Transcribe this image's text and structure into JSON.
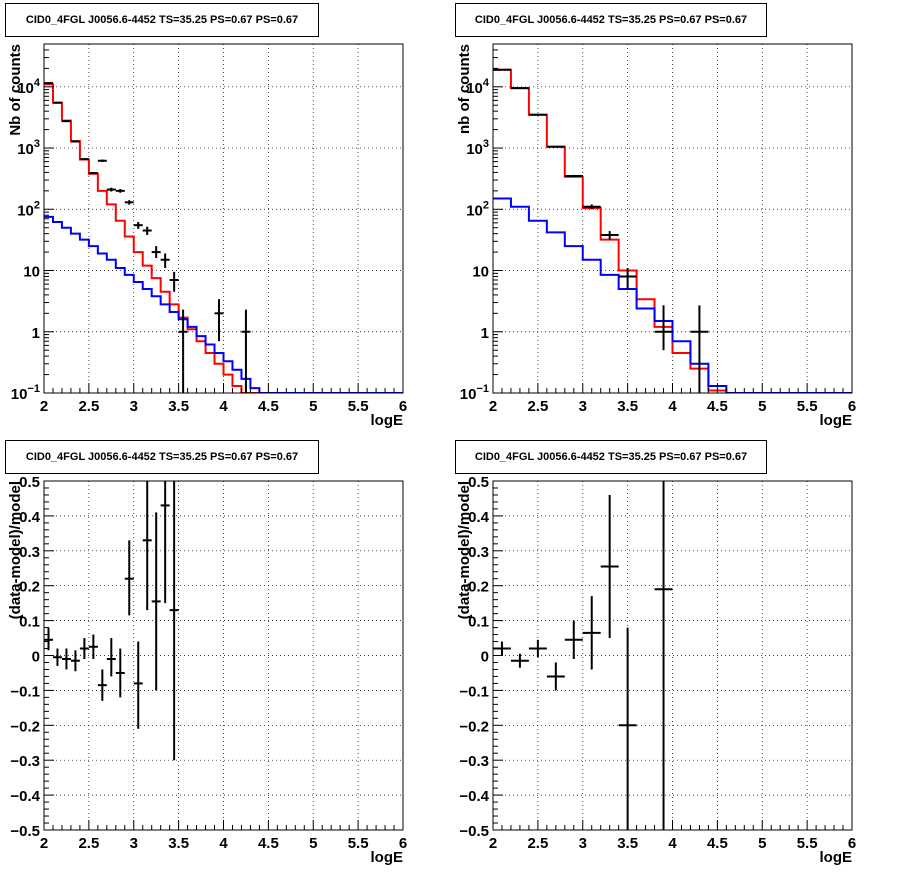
{
  "chart_data": [
    {
      "id": "p1",
      "type": "line",
      "title": "CID0_4FGL J0056.6-4452 TS=35.25 PS=0.67 PS=0.67",
      "xlabel": "logE",
      "ylabel": "Nb of counts",
      "xlim": [
        2,
        6
      ],
      "ylim": [
        0.1,
        50000
      ],
      "ylog": true,
      "grid": true,
      "xticks": [
        "2",
        "2.5",
        "3",
        "3.5",
        "4",
        "4.5",
        "5",
        "5.5",
        "6"
      ],
      "yticks": [
        "10^-1",
        "1",
        "10",
        "10^2",
        "10^3",
        "10^4"
      ],
      "series": [
        {
          "color": "#ff0000",
          "style": "step",
          "edges": [
            2.0,
            2.1,
            2.2,
            2.3,
            2.4,
            2.5,
            2.6,
            2.7,
            2.8,
            2.9,
            3.0,
            3.1,
            3.2,
            3.3,
            3.4,
            3.5,
            3.6,
            3.7,
            3.8,
            3.9,
            4.0,
            4.1,
            4.2,
            4.3,
            4.4,
            4.5,
            4.6,
            4.7,
            4.8,
            4.9,
            5.0,
            5.1,
            5.2,
            5.3,
            5.4,
            5.5,
            5.6,
            5.7,
            5.8,
            5.9,
            6.0
          ],
          "values": [
            11000,
            5500,
            2800,
            1300,
            650,
            380,
            200,
            120,
            65,
            36,
            20,
            12,
            7.5,
            4.5,
            2.8,
            1.7,
            1.1,
            0.7,
            0.45,
            0.3,
            0.2,
            0.13,
            0.1,
            0.1,
            0.1,
            0.1,
            0.1,
            0.1,
            0.1,
            0.1,
            0.1,
            0.1,
            0.1,
            0.1,
            0.1,
            0.1,
            0.1,
            0.1,
            0.1,
            0.1
          ]
        },
        {
          "color": "#0000ff",
          "style": "step",
          "edges": [
            2.0,
            2.1,
            2.2,
            2.3,
            2.4,
            2.5,
            2.6,
            2.7,
            2.8,
            2.9,
            3.0,
            3.1,
            3.2,
            3.3,
            3.4,
            3.5,
            3.6,
            3.7,
            3.8,
            3.9,
            4.0,
            4.1,
            4.2,
            4.3,
            4.4,
            4.5,
            4.6,
            4.7,
            4.8,
            4.9,
            5.0,
            5.1,
            5.2,
            5.3,
            5.4,
            5.5,
            5.6,
            5.7,
            5.8,
            5.9,
            6.0
          ],
          "values": [
            75,
            62,
            50,
            40,
            32,
            25,
            19,
            15,
            11,
            8.5,
            6.5,
            5,
            3.8,
            2.8,
            2.1,
            1.6,
            1.2,
            0.85,
            0.62,
            0.45,
            0.33,
            0.24,
            0.17,
            0.12,
            0.1,
            0.1,
            0.1,
            0.1,
            0.1,
            0.1,
            0.1,
            0.1,
            0.1,
            0.1,
            0.1,
            0.1,
            0.1,
            0.1,
            0.1,
            0.1
          ]
        },
        {
          "color": "#000000",
          "style": "errorbar",
          "points": [
            {
              "x": 2.05,
              "y": 11500,
              "xerr": 0.05,
              "ylo": 11300,
              "yhi": 11700
            },
            {
              "x": 2.15,
              "y": 5500,
              "xerr": 0.05,
              "ylo": 5400,
              "yhi": 5600
            },
            {
              "x": 2.25,
              "y": 2750,
              "xerr": 0.05,
              "ylo": 2700,
              "yhi": 2800
            },
            {
              "x": 2.35,
              "y": 1280,
              "xerr": 0.05,
              "ylo": 1250,
              "yhi": 1310
            },
            {
              "x": 2.45,
              "y": 660,
              "xerr": 0.05,
              "ylo": 640,
              "yhi": 680
            },
            {
              "x": 2.55,
              "y": 390,
              "xerr": 0.05,
              "ylo": 375,
              "yhi": 405
            },
            {
              "x": 2.65,
              "y": 620,
              "xerr": 0.05,
              "ylo": 590,
              "yhi": 650
            },
            {
              "x": 2.75,
              "y": 210,
              "xerr": 0.05,
              "ylo": 195,
              "yhi": 225
            },
            {
              "x": 2.85,
              "y": 200,
              "xerr": 0.05,
              "ylo": 186,
              "yhi": 214
            },
            {
              "x": 2.95,
              "y": 130,
              "xerr": 0.05,
              "ylo": 119,
              "yhi": 141
            },
            {
              "x": 3.05,
              "y": 55,
              "xerr": 0.05,
              "ylo": 48,
              "yhi": 62
            },
            {
              "x": 3.15,
              "y": 45,
              "xerr": 0.05,
              "ylo": 38,
              "yhi": 52
            },
            {
              "x": 3.25,
              "y": 20,
              "xerr": 0.05,
              "ylo": 16,
              "yhi": 25
            },
            {
              "x": 3.35,
              "y": 15,
              "xerr": 0.05,
              "ylo": 11,
              "yhi": 19
            },
            {
              "x": 3.45,
              "y": 7,
              "xerr": 0.05,
              "ylo": 4.5,
              "yhi": 9.5
            },
            {
              "x": 3.55,
              "y": 1,
              "xerr": 0.05,
              "ylo": 0.1,
              "yhi": 2.3
            },
            {
              "x": 3.95,
              "y": 2,
              "xerr": 0.05,
              "ylo": 0.7,
              "yhi": 3.4
            },
            {
              "x": 4.25,
              "y": 1,
              "xerr": 0.05,
              "ylo": 0.1,
              "yhi": 2.3
            }
          ]
        }
      ]
    },
    {
      "id": "p2",
      "type": "line",
      "title": "CID0_4FGL J0056.6-4452 TS=35.25 PS=0.67 PS=0.67",
      "xlabel": "logE",
      "ylabel": "nb of counts",
      "xlim": [
        2,
        6
      ],
      "ylim": [
        0.1,
        50000
      ],
      "ylog": true,
      "grid": true,
      "xticks": [
        "2",
        "2.5",
        "3",
        "3.5",
        "4",
        "4.5",
        "5",
        "5.5",
        "6"
      ],
      "yticks": [
        "10^-1",
        "1",
        "10",
        "10^2",
        "10^3",
        "10^4"
      ],
      "series": [
        {
          "color": "#ff0000",
          "style": "step",
          "edges": [
            2.0,
            2.2,
            2.4,
            2.6,
            2.8,
            3.0,
            3.2,
            3.4,
            3.6,
            3.8,
            4.0,
            4.2,
            4.4,
            4.6,
            4.8,
            5.0,
            5.2,
            5.4,
            5.6,
            5.8,
            6.0
          ],
          "values": [
            19000,
            9500,
            3500,
            1050,
            340,
            105,
            32,
            10,
            3.4,
            1.2,
            0.45,
            0.25,
            0.11,
            0.1,
            0.1,
            0.1,
            0.1,
            0.1,
            0.1,
            0.1
          ]
        },
        {
          "color": "#0000ff",
          "style": "step",
          "edges": [
            2.0,
            2.2,
            2.4,
            2.6,
            2.8,
            3.0,
            3.2,
            3.4,
            3.6,
            3.8,
            4.0,
            4.2,
            4.4,
            4.6,
            4.8,
            5.0,
            5.2,
            5.4,
            5.6,
            5.8,
            6.0
          ],
          "values": [
            150,
            110,
            65,
            42,
            25,
            15,
            8.5,
            5,
            2.4,
            1.5,
            0.7,
            0.3,
            0.13,
            0.1,
            0.1,
            0.1,
            0.1,
            0.1,
            0.1,
            0.1
          ]
        },
        {
          "color": "#000000",
          "style": "errorbar",
          "points": [
            {
              "x": 2.1,
              "y": 19000,
              "xerr": 0.1,
              "ylo": 18800,
              "yhi": 19200
            },
            {
              "x": 2.3,
              "y": 9500,
              "xerr": 0.1,
              "ylo": 9400,
              "yhi": 9600
            },
            {
              "x": 2.5,
              "y": 3500,
              "xerr": 0.1,
              "ylo": 3450,
              "yhi": 3550
            },
            {
              "x": 2.7,
              "y": 1050,
              "xerr": 0.1,
              "ylo": 1020,
              "yhi": 1080
            },
            {
              "x": 2.9,
              "y": 350,
              "xerr": 0.1,
              "ylo": 335,
              "yhi": 365
            },
            {
              "x": 3.1,
              "y": 110,
              "xerr": 0.1,
              "ylo": 100,
              "yhi": 120
            },
            {
              "x": 3.3,
              "y": 38,
              "xerr": 0.1,
              "ylo": 32,
              "yhi": 44
            },
            {
              "x": 3.5,
              "y": 8,
              "xerr": 0.1,
              "ylo": 5,
              "yhi": 11
            },
            {
              "x": 3.9,
              "y": 1,
              "xerr": 0.1,
              "ylo": 0.5,
              "yhi": 2.7
            },
            {
              "x": 4.3,
              "y": 1,
              "xerr": 0.1,
              "ylo": 0.1,
              "yhi": 2.7
            }
          ]
        }
      ]
    },
    {
      "id": "p3",
      "type": "scatter",
      "title": "CID0_4FGL J0056.6-4452 TS=35.25 PS=0.67 PS=0.67",
      "xlabel": "logE",
      "ylabel": "(data-model)/model",
      "xlim": [
        2,
        6
      ],
      "ylim": [
        -0.5,
        0.5
      ],
      "ylog": false,
      "grid": true,
      "xticks": [
        "2",
        "2.5",
        "3",
        "3.5",
        "4",
        "4.5",
        "5",
        "5.5",
        "6"
      ],
      "yticks": [
        "-0.5",
        "-0.4",
        "-0.3",
        "-0.2",
        "-0.1",
        "0",
        "0.1",
        "0.2",
        "0.3",
        "0.4",
        "0.5"
      ],
      "series": [
        {
          "color": "#000000",
          "style": "errorbar",
          "points": [
            {
              "x": 2.05,
              "y": 0.045,
              "xerr": 0.05,
              "ylo": 0.015,
              "yhi": 0.08
            },
            {
              "x": 2.15,
              "y": -0.005,
              "xerr": 0.05,
              "ylo": -0.03,
              "yhi": 0.02
            },
            {
              "x": 2.25,
              "y": -0.01,
              "xerr": 0.05,
              "ylo": -0.04,
              "yhi": 0.02
            },
            {
              "x": 2.35,
              "y": -0.015,
              "xerr": 0.05,
              "ylo": -0.045,
              "yhi": 0.015
            },
            {
              "x": 2.45,
              "y": 0.02,
              "xerr": 0.05,
              "ylo": -0.01,
              "yhi": 0.05
            },
            {
              "x": 2.55,
              "y": 0.025,
              "xerr": 0.05,
              "ylo": -0.01,
              "yhi": 0.06
            },
            {
              "x": 2.65,
              "y": -0.085,
              "xerr": 0.05,
              "ylo": -0.13,
              "yhi": -0.04
            },
            {
              "x": 2.75,
              "y": -0.01,
              "xerr": 0.05,
              "ylo": -0.06,
              "yhi": 0.05
            },
            {
              "x": 2.85,
              "y": -0.05,
              "xerr": 0.05,
              "ylo": -0.12,
              "yhi": 0.02
            },
            {
              "x": 2.95,
              "y": 0.22,
              "xerr": 0.05,
              "ylo": 0.115,
              "yhi": 0.33
            },
            {
              "x": 3.05,
              "y": -0.08,
              "xerr": 0.05,
              "ylo": -0.21,
              "yhi": 0.04
            },
            {
              "x": 3.15,
              "y": 0.33,
              "xerr": 0.05,
              "ylo": 0.13,
              "yhi": 0.52
            },
            {
              "x": 3.25,
              "y": 0.155,
              "xerr": 0.05,
              "ylo": -0.1,
              "yhi": 0.41
            },
            {
              "x": 3.35,
              "y": 0.43,
              "xerr": 0.05,
              "ylo": 0.15,
              "yhi": 0.72
            },
            {
              "x": 3.45,
              "y": 0.13,
              "xerr": 0.05,
              "ylo": -0.3,
              "yhi": 0.56
            }
          ]
        }
      ]
    },
    {
      "id": "p4",
      "type": "scatter",
      "title": "CID0_4FGL J0056.6-4452 TS=35.25 PS=0.67 PS=0.67",
      "xlabel": "logE",
      "ylabel": "(data-model)/model",
      "xlim": [
        2,
        6
      ],
      "ylim": [
        -0.5,
        0.5
      ],
      "ylog": false,
      "grid": true,
      "xticks": [
        "2",
        "2.5",
        "3",
        "3.5",
        "4",
        "4.5",
        "5",
        "5.5",
        "6"
      ],
      "yticks": [
        "-0.5",
        "-0.4",
        "-0.3",
        "-0.2",
        "-0.1",
        "0",
        "0.1",
        "0.2",
        "0.3",
        "0.4",
        "0.5"
      ],
      "series": [
        {
          "color": "#000000",
          "style": "errorbar",
          "points": [
            {
              "x": 2.1,
              "y": 0.02,
              "xerr": 0.1,
              "ylo": 0.0,
              "yhi": 0.04
            },
            {
              "x": 2.3,
              "y": -0.015,
              "xerr": 0.1,
              "ylo": -0.035,
              "yhi": 0.005
            },
            {
              "x": 2.5,
              "y": 0.02,
              "xerr": 0.1,
              "ylo": -0.005,
              "yhi": 0.045
            },
            {
              "x": 2.7,
              "y": -0.06,
              "xerr": 0.1,
              "ylo": -0.1,
              "yhi": -0.02
            },
            {
              "x": 2.9,
              "y": 0.045,
              "xerr": 0.1,
              "ylo": -0.01,
              "yhi": 0.1
            },
            {
              "x": 3.1,
              "y": 0.065,
              "xerr": 0.1,
              "ylo": -0.04,
              "yhi": 0.17
            },
            {
              "x": 3.3,
              "y": 0.255,
              "xerr": 0.1,
              "ylo": 0.05,
              "yhi": 0.46
            },
            {
              "x": 3.5,
              "y": -0.2,
              "xerr": 0.1,
              "ylo": -0.55,
              "yhi": 0.08
            },
            {
              "x": 3.9,
              "y": 0.19,
              "xerr": 0.1,
              "ylo": -0.55,
              "yhi": 0.6
            }
          ]
        }
      ]
    }
  ]
}
